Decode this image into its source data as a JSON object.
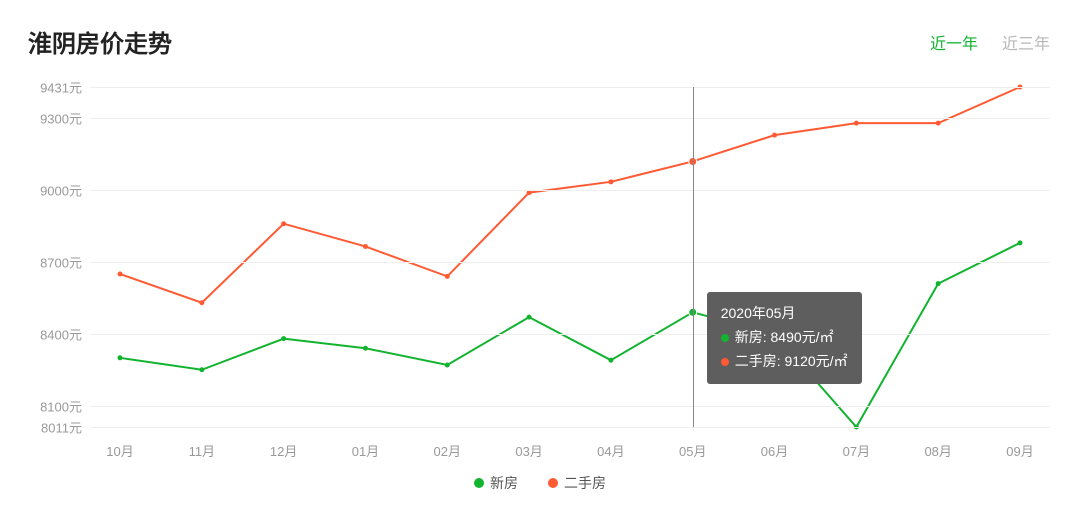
{
  "header": {
    "title": "淮阴房价走势",
    "tabs": [
      {
        "label": "近一年",
        "active": true
      },
      {
        "label": "近三年",
        "active": false
      }
    ]
  },
  "chart": {
    "type": "line",
    "background_color": "#ffffff",
    "grid_color": "#eeeeee",
    "axis_label_color": "#999999",
    "axis_fontsize": 13,
    "ylim": [
      8011,
      9431
    ],
    "ytick_values": [
      8011,
      8100,
      8400,
      8700,
      9000,
      9300,
      9431
    ],
    "ytick_suffix": "元",
    "categories": [
      "10月",
      "11月",
      "12月",
      "01月",
      "02月",
      "03月",
      "04月",
      "05月",
      "06月",
      "07月",
      "08月",
      "09月"
    ],
    "series": [
      {
        "name": "新房",
        "color": "#12b32f",
        "line_width": 2,
        "marker": "circle",
        "marker_size": 5,
        "values": [
          8300,
          8250,
          8380,
          8340,
          8270,
          8470,
          8290,
          8490,
          8400,
          8011,
          8610,
          8780
        ]
      },
      {
        "name": "二手房",
        "color": "#ff5a33",
        "line_width": 2,
        "marker": "circle",
        "marker_size": 5,
        "values": [
          8650,
          8530,
          8860,
          8765,
          8640,
          8990,
          9035,
          9120,
          9230,
          9280,
          9280,
          9431
        ]
      }
    ],
    "hover": {
      "index": 7,
      "vline_color": "#888888",
      "highlight_marker_size": 8,
      "tooltip": {
        "title": "2020年05月",
        "rows": [
          {
            "color": "#12b32f",
            "text": "新房: 8490元/㎡"
          },
          {
            "color": "#ff5a33",
            "text": "二手房: 9120元/㎡"
          }
        ],
        "bg": "#5e5e5e",
        "text_color": "#ffffff",
        "fontsize": 14
      }
    },
    "legend": {
      "position": "bottom-center",
      "items": [
        {
          "color": "#12b32f",
          "label": "新房"
        },
        {
          "color": "#ff5a33",
          "label": "二手房"
        }
      ]
    }
  }
}
